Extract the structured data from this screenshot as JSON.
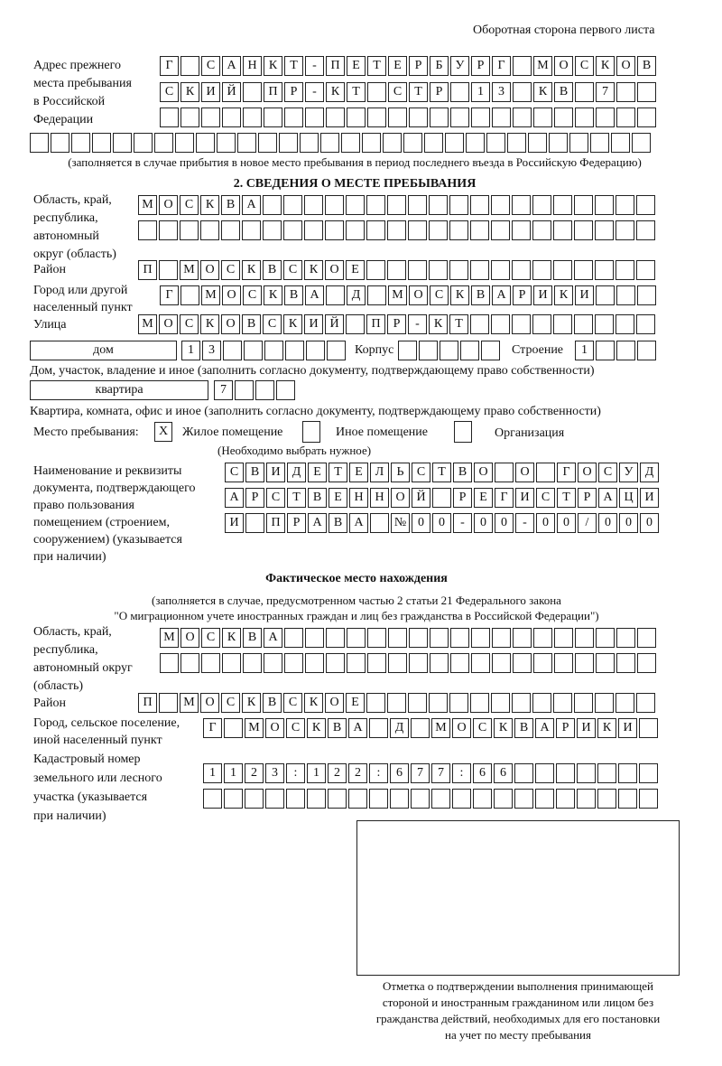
{
  "header": "Оборотная сторона первого листа",
  "prev": {
    "label": "Адрес прежнего\nместа пребывания\nв Российской\nФедерации",
    "rows": [
      [
        "Г",
        "",
        "С",
        "А",
        "Н",
        "К",
        "Т",
        "-",
        "П",
        "Е",
        "Т",
        "Е",
        "Р",
        "Б",
        "У",
        "Р",
        "Г",
        "",
        "М",
        "О",
        "С",
        "К",
        "О",
        "В"
      ],
      [
        "С",
        "К",
        "И",
        "Й",
        "",
        "П",
        "Р",
        "-",
        "К",
        "Т",
        "",
        "С",
        "Т",
        "Р",
        "",
        "1",
        "3",
        "",
        "К",
        "В",
        "",
        "7",
        "",
        ""
      ],
      [
        "",
        "",
        "",
        "",
        "",
        "",
        "",
        "",
        "",
        "",
        "",
        "",
        "",
        "",
        "",
        "",
        "",
        "",
        "",
        "",
        "",
        "",
        "",
        ""
      ],
      [
        "",
        "",
        "",
        "",
        "",
        "",
        "",
        "",
        "",
        "",
        "",
        "",
        "",
        "",
        "",
        "",
        "",
        "",
        "",
        "",
        "",
        "",
        "",
        "",
        "",
        "",
        "",
        "",
        "",
        ""
      ]
    ],
    "note": "(заполняется в случае прибытия в новое место пребывания в период последнего въезда в Российскую Федерацию)"
  },
  "section2": {
    "title": "2. СВЕДЕНИЯ О МЕСТЕ ПРЕБЫВАНИЯ",
    "region_label": "Область, край,\nреспублика,\nавтономный\nокруг (область)",
    "region_rows": [
      [
        "М",
        "О",
        "С",
        "К",
        "В",
        "А",
        "",
        "",
        "",
        "",
        "",
        "",
        "",
        "",
        "",
        "",
        "",
        "",
        "",
        "",
        "",
        "",
        "",
        "",
        ""
      ],
      [
        "",
        "",
        "",
        "",
        "",
        "",
        "",
        "",
        "",
        "",
        "",
        "",
        "",
        "",
        "",
        "",
        "",
        "",
        "",
        "",
        "",
        "",
        "",
        "",
        ""
      ]
    ],
    "district_label": "Район",
    "district": [
      "П",
      "",
      "М",
      "О",
      "С",
      "К",
      "В",
      "С",
      "К",
      "О",
      "Е",
      "",
      "",
      "",
      "",
      "",
      "",
      "",
      "",
      "",
      "",
      "",
      "",
      "",
      ""
    ],
    "city_label": "Город или другой\nнаселенный пункт",
    "city": [
      "Г",
      "",
      "М",
      "О",
      "С",
      "К",
      "В",
      "А",
      "",
      "Д",
      "",
      "М",
      "О",
      "С",
      "К",
      "В",
      "А",
      "Р",
      "И",
      "К",
      "И",
      "",
      "",
      ""
    ],
    "street_label": "Улица",
    "street": [
      "М",
      "О",
      "С",
      "К",
      "О",
      "В",
      "С",
      "К",
      "И",
      "Й",
      "",
      "П",
      "Р",
      "-",
      "К",
      "Т",
      "",
      "",
      "",
      "",
      "",
      "",
      "",
      "",
      ""
    ],
    "house_type": "дом",
    "house": [
      "1",
      "3",
      "",
      "",
      "",
      "",
      "",
      ""
    ],
    "korpus_label": "Корпус",
    "korpus": [
      "",
      "",
      "",
      "",
      ""
    ],
    "building_label": "Строение",
    "building": [
      "1",
      "",
      "",
      ""
    ],
    "house_note": "Дом, участок, владение и иное (заполнить согласно документу, подтверждающему право собственности)",
    "flat_type": "квартира",
    "flat": [
      "7",
      "",
      "",
      ""
    ],
    "flat_note": "Квартира, комната, офис и иное (заполнить согласно документу, подтверждающему право собственности)",
    "place_label": "Место пребывания:",
    "options": [
      {
        "mark": "X",
        "label": "Жилое помещение"
      },
      {
        "mark": "",
        "label": "Иное помещение"
      },
      {
        "mark": "",
        "label": "Организация"
      }
    ],
    "choose_note": "(Необходимо выбрать нужное)",
    "doc_label": "Наименование и реквизиты\nдокумента, подтверждающего\nправо пользования\nпомещением (строением,\nсооружением) (указывается\nпри наличии)",
    "doc_rows": [
      [
        "С",
        "В",
        "И",
        "Д",
        "Е",
        "Т",
        "Е",
        "Л",
        "Ь",
        "С",
        "Т",
        "В",
        "О",
        "",
        "О",
        "",
        "Г",
        "О",
        "С",
        "У",
        "Д"
      ],
      [
        "А",
        "Р",
        "С",
        "Т",
        "В",
        "Е",
        "Н",
        "Н",
        "О",
        "Й",
        "",
        "Р",
        "Е",
        "Г",
        "И",
        "С",
        "Т",
        "Р",
        "А",
        "Ц",
        "И"
      ],
      [
        "И",
        "",
        "П",
        "Р",
        "А",
        "В",
        "А",
        "",
        "№",
        "0",
        "0",
        "-",
        "0",
        "0",
        "-",
        "0",
        "0",
        "/",
        "0",
        "0",
        "0"
      ]
    ]
  },
  "actual": {
    "title": "Фактическое место нахождения",
    "note1": "(заполняется в случае, предусмотренном частью 2 статьи 21 Федерального закона",
    "note2": "\"О миграционном учете иностранных граждан и лиц без гражданства в Российской Федерации\")",
    "region_label": "Область, край,\nреспублика,\nавтономный округ\n(область)",
    "region_rows": [
      [
        "М",
        "О",
        "С",
        "К",
        "В",
        "А",
        "",
        "",
        "",
        "",
        "",
        "",
        "",
        "",
        "",
        "",
        "",
        "",
        "",
        "",
        "",
        "",
        "",
        ""
      ],
      [
        "",
        "",
        "",
        "",
        "",
        "",
        "",
        "",
        "",
        "",
        "",
        "",
        "",
        "",
        "",
        "",
        "",
        "",
        "",
        "",
        "",
        "",
        "",
        ""
      ]
    ],
    "district_label": "Район",
    "district": [
      "П",
      "",
      "М",
      "О",
      "С",
      "К",
      "В",
      "С",
      "К",
      "О",
      "Е",
      "",
      "",
      "",
      "",
      "",
      "",
      "",
      "",
      "",
      "",
      "",
      "",
      "",
      ""
    ],
    "city_label": "Город, сельское поселение,\nиной населенный пункт",
    "city": [
      "Г",
      "",
      "М",
      "О",
      "С",
      "К",
      "В",
      "А",
      "",
      "Д",
      "",
      "М",
      "О",
      "С",
      "К",
      "В",
      "А",
      "Р",
      "И",
      "К",
      "И",
      ""
    ],
    "cadastre_label": "Кадастровый номер\nземельного или лесного\nучастка (указывается\nпри наличии)",
    "cadastre_rows": [
      [
        "1",
        "1",
        "2",
        "3",
        ":",
        "1",
        "2",
        "2",
        ":",
        "6",
        "7",
        "7",
        ":",
        "6",
        "6",
        "",
        "",
        "",
        "",
        "",
        "",
        ""
      ],
      [
        "",
        "",
        "",
        "",
        "",
        "",
        "",
        "",
        "",
        "",
        "",
        "",
        "",
        "",
        "",
        "",
        "",
        "",
        "",
        "",
        "",
        ""
      ]
    ]
  },
  "stamp_caption": "Отметка о подтверждении выполнения принимающей\nстороной и иностранным гражданином или лицом без\nгражданства действий, необходимых для его постановки\nна учет по месту пребывания"
}
